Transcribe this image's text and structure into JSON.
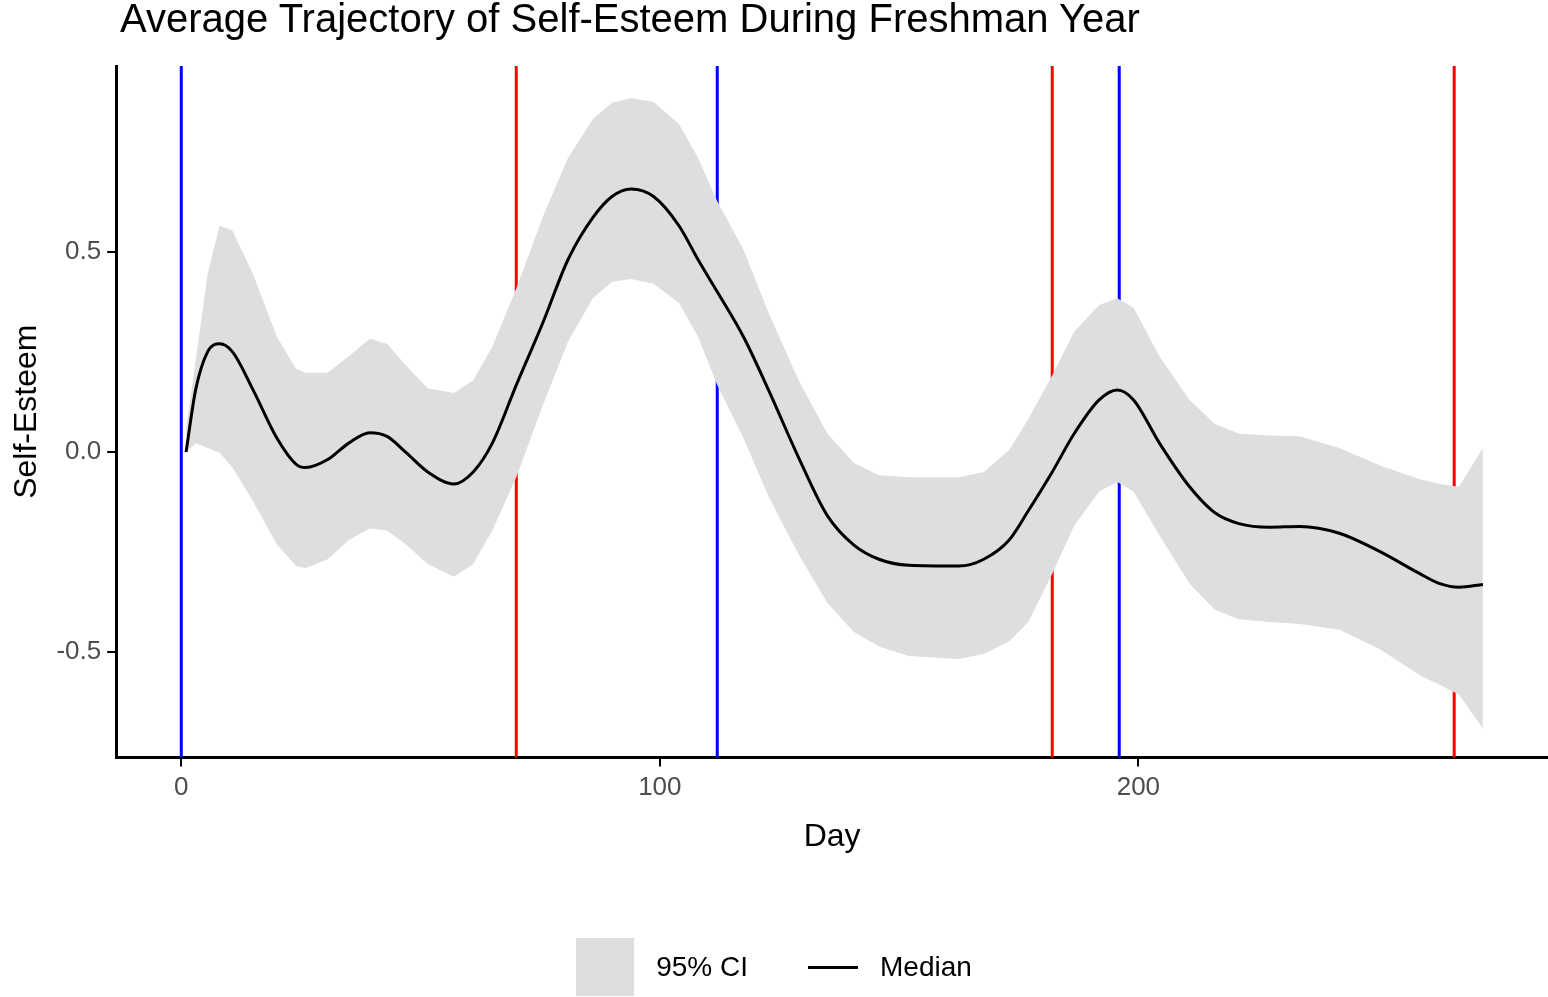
{
  "chart_data": {
    "type": "line",
    "title": "Average Trajectory of Self-Esteem During Freshman Year",
    "xlabel": "Day",
    "ylabel": "Self-Esteem",
    "xlim": [
      -13.6,
      285.6
    ],
    "xticks": [
      0,
      100,
      200
    ],
    "ylim": [
      -0.763,
      0.964
    ],
    "yticks": [
      {
        "value": -0.5,
        "label": "-0.5"
      },
      {
        "value": 0,
        "label": "0.0"
      },
      {
        "value": 0.5,
        "label": "0.5"
      }
    ],
    "grid": false,
    "legend": "bottom",
    "marker": "none",
    "line_style": "solid",
    "annotations": [
      "95% CI"
    ],
    "ref_lines": [
      {
        "axis": "x",
        "value": 0,
        "color": "#0000ff"
      },
      {
        "axis": "x",
        "value": 70,
        "color": "#ff0000"
      },
      {
        "axis": "x",
        "value": 112,
        "color": "#0000ff"
      },
      {
        "axis": "x",
        "value": 182,
        "color": "#ff0000"
      },
      {
        "axis": "x",
        "value": 196,
        "color": "#0000ff"
      },
      {
        "axis": "x",
        "value": 266,
        "color": "#ff0000"
      }
    ],
    "series": [
      {
        "name": "Median",
        "color": "#000000",
        "x": [
          1,
          3,
          5.5,
          8,
          10.7,
          15,
          20,
          24,
          26,
          30.6,
          35,
          39.4,
          43,
          47,
          51.5,
          57,
          61,
          65,
          70,
          75.6,
          80.8,
          86,
          90,
          94,
          98.7,
          104,
          108,
          112,
          117.5,
          122.7,
          129,
          135,
          140.5,
          145.8,
          152,
          162.5,
          167.7,
          173,
          177,
          182,
          186.6,
          191.8,
          195.6,
          199,
          204.4,
          210.7,
          216,
          221,
          227.4,
          233.7,
          242,
          250.5,
          258.8,
          263,
          267,
          272
        ],
        "values": [
          0,
          0.155,
          0.25,
          0.27,
          0.25,
          0.155,
          0.034,
          -0.031,
          -0.039,
          -0.019,
          0.022,
          0.048,
          0.039,
          -0.002,
          -0.05,
          -0.08,
          -0.05,
          0.022,
          0.167,
          0.324,
          0.48,
          0.585,
          0.638,
          0.657,
          0.638,
          0.565,
          0.48,
          0.4,
          0.287,
          0.155,
          -0.014,
          -0.159,
          -0.232,
          -0.268,
          -0.283,
          -0.285,
          -0.268,
          -0.22,
          -0.147,
          -0.05,
          0.046,
          0.13,
          0.155,
          0.13,
          0.022,
          -0.087,
          -0.152,
          -0.179,
          -0.188,
          -0.186,
          -0.203,
          -0.249,
          -0.304,
          -0.329,
          -0.338,
          -0.331
        ],
        "upper": [
          0.058,
          0.227,
          0.444,
          0.565,
          0.553,
          0.444,
          0.287,
          0.208,
          0.198,
          0.198,
          0.239,
          0.283,
          0.27,
          0.215,
          0.159,
          0.147,
          0.179,
          0.263,
          0.408,
          0.589,
          0.734,
          0.831,
          0.872,
          0.884,
          0.874,
          0.819,
          0.734,
          0.626,
          0.505,
          0.348,
          0.179,
          0.046,
          -0.027,
          -0.058,
          -0.063,
          -0.063,
          -0.05,
          0.005,
          0.082,
          0.191,
          0.3,
          0.367,
          0.384,
          0.36,
          0.239,
          0.13,
          0.07,
          0.046,
          0.041,
          0.039,
          0.01,
          -0.034,
          -0.068,
          -0.08,
          -0.087,
          0.01
        ],
        "lower": [
          0,
          0.022,
          0.01,
          -0.002,
          -0.039,
          -0.123,
          -0.232,
          -0.285,
          -0.29,
          -0.268,
          -0.22,
          -0.191,
          -0.196,
          -0.232,
          -0.28,
          -0.312,
          -0.28,
          -0.196,
          -0.063,
          0.118,
          0.275,
          0.384,
          0.425,
          0.432,
          0.42,
          0.372,
          0.287,
          0.167,
          0.034,
          -0.111,
          -0.256,
          -0.377,
          -0.449,
          -0.486,
          -0.51,
          -0.517,
          -0.505,
          -0.473,
          -0.425,
          -0.304,
          -0.184,
          -0.099,
          -0.075,
          -0.099,
          -0.208,
          -0.329,
          -0.394,
          -0.418,
          -0.425,
          -0.43,
          -0.444,
          -0.493,
          -0.558,
          -0.582,
          -0.606,
          -0.691
        ]
      }
    ]
  }
}
